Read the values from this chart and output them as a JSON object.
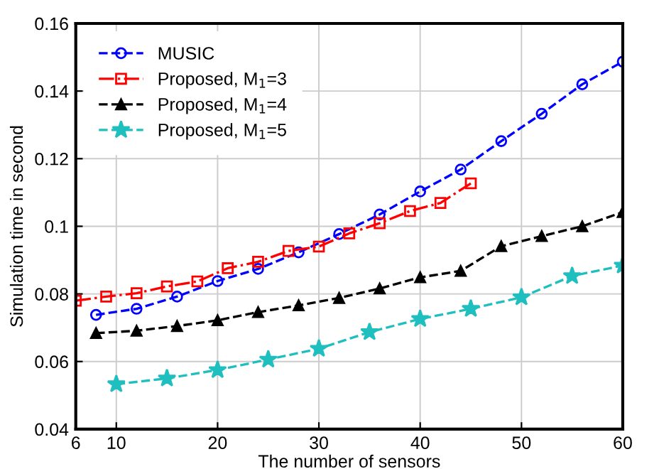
{
  "chart_data": {
    "type": "line",
    "xlabel": "The number of sensors",
    "ylabel": "Simulation time in second",
    "xlim": [
      6,
      60
    ],
    "ylim": [
      0.04,
      0.16
    ],
    "xticks": [
      6,
      10,
      20,
      30,
      40,
      50,
      60
    ],
    "yticks": [
      0.04,
      0.06,
      0.08,
      0.1,
      0.12,
      0.14,
      0.16
    ],
    "grid": true,
    "legend": "top left",
    "line_style": "dashed",
    "series": [
      {
        "name": "MUSIC",
        "color": "#0000ff",
        "marker": "circle",
        "x": [
          8,
          12,
          16,
          20,
          24,
          28,
          32,
          36,
          40,
          44,
          48,
          52,
          56,
          60
        ],
        "values": [
          0.0738,
          0.0756,
          0.0792,
          0.0838,
          0.0874,
          0.0923,
          0.0977,
          0.1035,
          0.1103,
          0.1168,
          0.1252,
          0.1333,
          0.142,
          0.1487
        ]
      },
      {
        "name": "Proposed, M$_{1}$=3",
        "color": "#ff0000",
        "marker": "square",
        "line_style": "dashdot",
        "x": [
          6,
          9,
          12,
          15,
          18,
          21,
          24,
          27,
          30,
          33,
          36,
          39,
          42,
          45
        ],
        "values": [
          0.078,
          0.0792,
          0.0802,
          0.0822,
          0.0837,
          0.0876,
          0.0895,
          0.0927,
          0.094,
          0.0979,
          0.1009,
          0.1045,
          0.1069,
          0.1127
        ]
      },
      {
        "name": "Proposed, M$_{1}$=4",
        "color": "#000000",
        "marker": "triangle",
        "x": [
          8,
          12,
          16,
          20,
          24,
          28,
          32,
          36,
          40,
          44,
          48,
          52,
          56,
          60
        ],
        "values": [
          0.0684,
          0.0691,
          0.0705,
          0.0722,
          0.0746,
          0.0766,
          0.0788,
          0.0816,
          0.0849,
          0.0868,
          0.0941,
          0.0971,
          0.1,
          0.1042
        ]
      },
      {
        "name": "Proposed, M$_{1}$=5",
        "color": "#1fbfbf",
        "marker": "star",
        "x": [
          10,
          15,
          20,
          25,
          30,
          35,
          40,
          45,
          50,
          55,
          60
        ],
        "values": [
          0.0533,
          0.055,
          0.0575,
          0.0606,
          0.0638,
          0.0687,
          0.0726,
          0.0756,
          0.079,
          0.0853,
          0.0884
        ]
      }
    ]
  }
}
